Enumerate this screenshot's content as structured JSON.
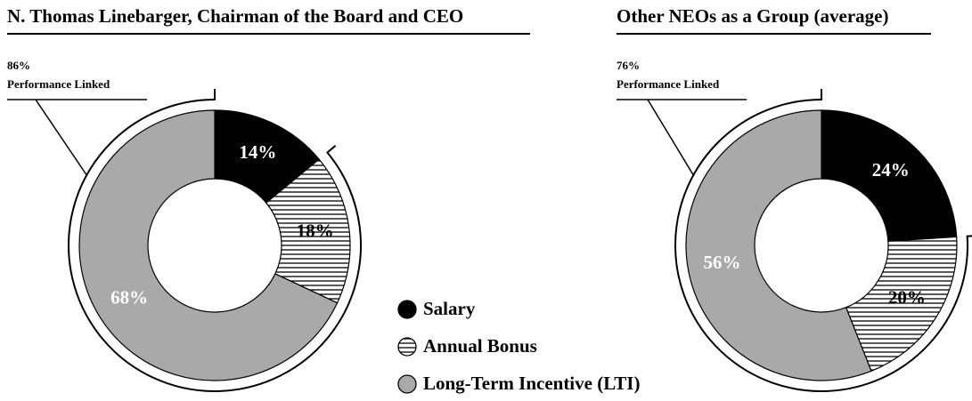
{
  "chart_data": [
    {
      "type": "pie",
      "title": "N. Thomas Linebarger, Chairman of the Board and CEO",
      "categories": [
        "Salary",
        "Annual Bonus",
        "Long-Term Incentive (LTI)"
      ],
      "values": [
        14,
        18,
        68
      ],
      "value_labels": [
        "14%",
        "18%",
        "68%"
      ],
      "colors": [
        "#000000",
        "#ffffff",
        "#a9a9a9"
      ],
      "hatch": [
        false,
        true,
        false
      ],
      "linked": {
        "value": 86,
        "label": "86%",
        "text": "Performance Linked"
      }
    },
    {
      "type": "pie",
      "title": "Other NEOs as a Group (average)",
      "categories": [
        "Salary",
        "Annual Bonus",
        "Long-Term Incentive (LTI)"
      ],
      "values": [
        24,
        20,
        56
      ],
      "value_labels": [
        "24%",
        "20%",
        "56%"
      ],
      "colors": [
        "#000000",
        "#ffffff",
        "#a9a9a9"
      ],
      "hatch": [
        false,
        true,
        false
      ],
      "linked": {
        "value": 76,
        "label": "76%",
        "text": "Performance Linked"
      }
    }
  ]
}
